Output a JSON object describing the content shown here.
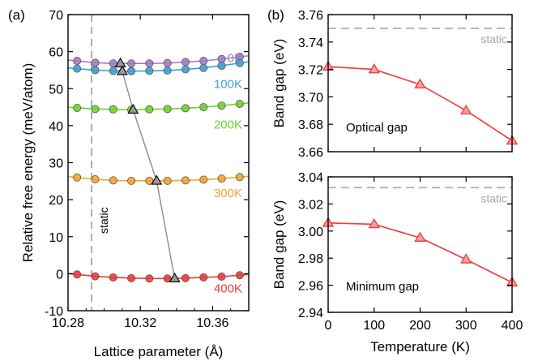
{
  "figure": {
    "panel_a_label": "(a)",
    "panel_b_label": "(b)"
  },
  "chart_data": [
    {
      "type": "line",
      "panel": "(a)",
      "xlabel": "Lattice parameter (Å)",
      "ylabel": "Relative free energy (meV/atom)",
      "xlim": [
        10.28,
        10.38
      ],
      "ylim": [
        -10,
        70
      ],
      "xticks": [
        10.28,
        10.32,
        10.36
      ],
      "yticks": [
        -10,
        0,
        10,
        20,
        30,
        40,
        50,
        60,
        70
      ],
      "static_line": {
        "x": 10.293,
        "label": "static"
      },
      "point_x": [
        10.285,
        10.295,
        10.305,
        10.315,
        10.325,
        10.335,
        10.345,
        10.355,
        10.365,
        10.375
      ],
      "series": [
        {
          "name": "0K",
          "color": "#a07cc5",
          "values": [
            57.5,
            57.0,
            56.8,
            56.8,
            56.8,
            56.9,
            57.2,
            57.5,
            58.0,
            58.6
          ]
        },
        {
          "name": "100K",
          "color": "#3f9fd6",
          "values": [
            55.4,
            55.0,
            54.8,
            54.7,
            54.8,
            54.9,
            55.2,
            55.6,
            56.2,
            56.9
          ]
        },
        {
          "name": "200K",
          "color": "#72d22a",
          "values": [
            44.8,
            44.5,
            44.4,
            44.3,
            44.4,
            44.5,
            44.7,
            45.0,
            45.4,
            45.9
          ]
        },
        {
          "name": "300K",
          "color": "#f4a52a",
          "values": [
            26.0,
            25.5,
            25.2,
            25.1,
            25.1,
            25.1,
            25.2,
            25.4,
            25.7,
            26.1
          ]
        },
        {
          "name": "400K",
          "color": "#f03a3a",
          "values": [
            -0.2,
            -0.7,
            -1.0,
            -1.2,
            -1.3,
            -1.3,
            -1.2,
            -1.0,
            -0.8,
            -0.4
          ]
        }
      ],
      "minima": {
        "x": [
          10.309,
          10.31,
          10.316,
          10.329,
          10.339
        ],
        "y": [
          56.8,
          54.7,
          44.3,
          25.1,
          -1.3
        ]
      },
      "grid": false
    },
    {
      "type": "line",
      "panel": "(b)",
      "xlabel": "",
      "ylabel": "Band gap (eV)",
      "annotation": "Optical gap",
      "static_value": 3.75,
      "static_label": "static",
      "x": [
        0,
        100,
        200,
        300,
        400
      ],
      "values": [
        3.722,
        3.72,
        3.709,
        3.69,
        3.668
      ],
      "ylim": [
        3.66,
        3.76
      ],
      "yticks": [
        3.66,
        3.68,
        3.7,
        3.72,
        3.74,
        3.76
      ],
      "xlim": [
        0,
        400
      ],
      "color": "#f03a3a"
    },
    {
      "type": "line",
      "panel": "(b)",
      "xlabel": "Temperature (K)",
      "ylabel": "Band gap (eV)",
      "annotation": "Minimum gap",
      "static_value": 3.032,
      "static_label": "static",
      "x": [
        0,
        100,
        200,
        300,
        400
      ],
      "values": [
        3.006,
        3.005,
        2.995,
        2.979,
        2.962
      ],
      "ylim": [
        2.94,
        3.04
      ],
      "yticks": [
        2.94,
        2.96,
        2.98,
        3.0,
        3.02,
        3.04
      ],
      "xlim": [
        0,
        400
      ],
      "xticks": [
        0,
        100,
        200,
        300,
        400
      ],
      "color": "#f03a3a"
    }
  ]
}
